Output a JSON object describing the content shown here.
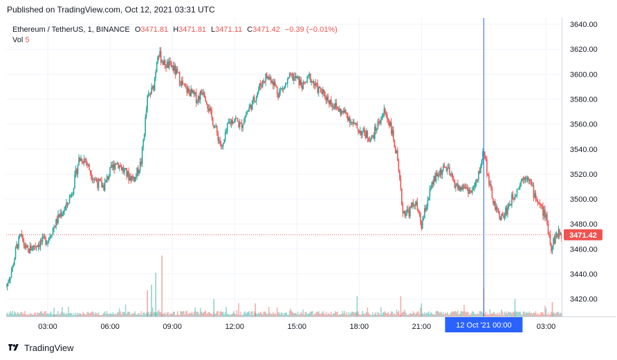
{
  "header": {
    "published": "Published on TradingView.com, Oct 12, 2021 03:31 UTC"
  },
  "legend": {
    "symbol": "Ethereum / TetherUS, 1, BINANCE",
    "o_label": "O",
    "o_value": "3471.81",
    "h_label": "H",
    "h_value": "3471.81",
    "l_label": "L",
    "l_value": "3471.11",
    "c_label": "C",
    "c_value": "3471.42",
    "change": "−0.39 (−0.01%)",
    "vol_label": "Vol",
    "vol_value": "5"
  },
  "footer": {
    "brand": "TradingView",
    "logo_icon": "tradingview-logo-icon"
  },
  "colors": {
    "up": "#26a69a",
    "down": "#ef5350",
    "crosshair": "#2962ff",
    "grid": "#f0f3fa",
    "axis_text": "#131722",
    "price_line": "#ef5350"
  },
  "chart_data": {
    "type": "candlestick",
    "symbol": "Ethereum / TetherUS",
    "interval": "1",
    "exchange": "BINANCE",
    "y_axis": {
      "side": "right",
      "ylim": [
        3406,
        3645
      ],
      "ticks": [
        3420,
        3440,
        3460,
        3480,
        3500,
        3520,
        3540,
        3560,
        3580,
        3600,
        3620,
        3640
      ],
      "tick_labels": [
        "3420.00",
        "3440.00",
        "3460.00",
        "3480.00",
        "3500.00",
        "3520.00",
        "3540.00",
        "3560.00",
        "3580.00",
        "3600.00",
        "3620.00",
        "3640.00"
      ]
    },
    "x_axis": {
      "range_hours": [
        1.0,
        27.75
      ],
      "ticks": [
        3,
        6,
        9,
        12,
        15,
        18,
        21,
        24,
        27
      ],
      "tick_labels": [
        "03:00",
        "06:00",
        "09:00",
        "12:00",
        "15:00",
        "18:00",
        "21:00",
        "00:00",
        "03:00"
      ]
    },
    "crosshair": {
      "x_hours": 24.0,
      "label": "12 Oct '21   00:00"
    },
    "last_price": {
      "value": 3471.42,
      "label": "3471.42"
    },
    "path_points": [
      [
        1.0,
        3430
      ],
      [
        1.3,
        3445
      ],
      [
        1.5,
        3462
      ],
      [
        1.7,
        3470
      ],
      [
        2.0,
        3458
      ],
      [
        2.3,
        3462
      ],
      [
        2.7,
        3466
      ],
      [
        3.0,
        3468
      ],
      [
        3.3,
        3478
      ],
      [
        3.6,
        3488
      ],
      [
        3.9,
        3494
      ],
      [
        4.2,
        3508
      ],
      [
        4.5,
        3532
      ],
      [
        4.8,
        3532
      ],
      [
        5.1,
        3520
      ],
      [
        5.4,
        3513
      ],
      [
        5.7,
        3510
      ],
      [
        6.0,
        3522
      ],
      [
        6.3,
        3530
      ],
      [
        6.6,
        3524
      ],
      [
        6.9,
        3518
      ],
      [
        7.2,
        3517
      ],
      [
        7.5,
        3530
      ],
      [
        7.8,
        3580
      ],
      [
        8.1,
        3590
      ],
      [
        8.3,
        3618
      ],
      [
        8.6,
        3608
      ],
      [
        9.0,
        3606
      ],
      [
        9.3,
        3598
      ],
      [
        9.6,
        3588
      ],
      [
        9.9,
        3585
      ],
      [
        10.2,
        3580
      ],
      [
        10.5,
        3588
      ],
      [
        10.8,
        3570
      ],
      [
        11.1,
        3555
      ],
      [
        11.4,
        3540
      ],
      [
        11.7,
        3560
      ],
      [
        12.0,
        3565
      ],
      [
        12.3,
        3558
      ],
      [
        12.6,
        3570
      ],
      [
        12.9,
        3578
      ],
      [
        13.2,
        3590
      ],
      [
        13.5,
        3598
      ],
      [
        13.8,
        3596
      ],
      [
        14.1,
        3585
      ],
      [
        14.4,
        3590
      ],
      [
        14.7,
        3598
      ],
      [
        15.0,
        3596
      ],
      [
        15.3,
        3590
      ],
      [
        15.6,
        3598
      ],
      [
        15.9,
        3590
      ],
      [
        16.2,
        3585
      ],
      [
        16.5,
        3580
      ],
      [
        16.8,
        3575
      ],
      [
        17.1,
        3570
      ],
      [
        17.4,
        3568
      ],
      [
        17.7,
        3560
      ],
      [
        18.0,
        3555
      ],
      [
        18.3,
        3552
      ],
      [
        18.6,
        3548
      ],
      [
        18.9,
        3560
      ],
      [
        19.2,
        3570
      ],
      [
        19.5,
        3560
      ],
      [
        19.8,
        3535
      ],
      [
        20.1,
        3490
      ],
      [
        20.4,
        3490
      ],
      [
        20.7,
        3498
      ],
      [
        21.0,
        3478
      ],
      [
        21.3,
        3500
      ],
      [
        21.6,
        3515
      ],
      [
        21.9,
        3522
      ],
      [
        22.2,
        3525
      ],
      [
        22.5,
        3515
      ],
      [
        22.8,
        3508
      ],
      [
        23.1,
        3510
      ],
      [
        23.4,
        3505
      ],
      [
        23.7,
        3515
      ],
      [
        24.0,
        3540
      ],
      [
        24.3,
        3508
      ],
      [
        24.6,
        3490
      ],
      [
        24.9,
        3485
      ],
      [
        25.2,
        3495
      ],
      [
        25.5,
        3505
      ],
      [
        25.8,
        3515
      ],
      [
        26.1,
        3520
      ],
      [
        26.4,
        3505
      ],
      [
        26.7,
        3495
      ],
      [
        27.0,
        3485
      ],
      [
        27.25,
        3462
      ],
      [
        27.5,
        3472
      ],
      [
        27.75,
        3471.42
      ]
    ],
    "volume_spikes": [
      [
        8.2,
        30
      ],
      [
        8.5,
        42
      ],
      [
        8.0,
        22
      ],
      [
        7.8,
        18
      ],
      [
        11.0,
        12
      ],
      [
        20.0,
        14
      ],
      [
        21.0,
        9
      ],
      [
        24.0,
        20
      ],
      [
        25.5,
        12
      ],
      [
        27.3,
        10
      ],
      [
        17.9,
        14
      ],
      [
        13.0,
        9
      ],
      [
        3.3,
        6
      ]
    ]
  }
}
